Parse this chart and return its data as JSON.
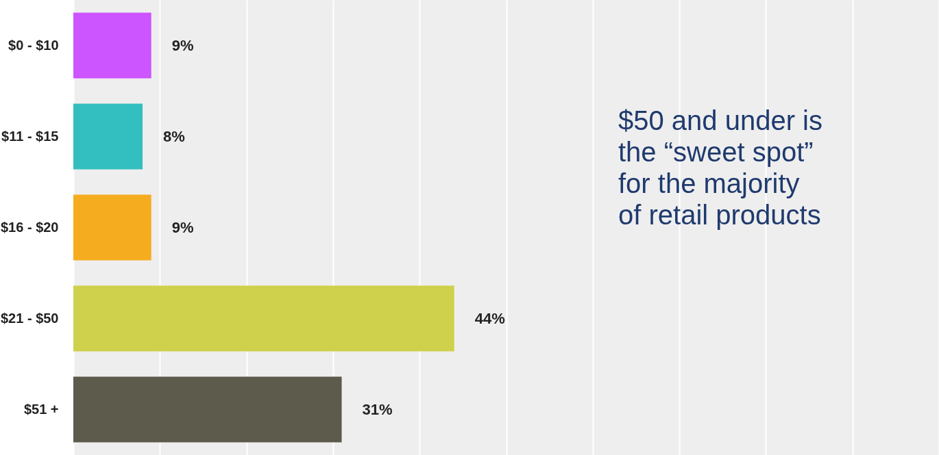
{
  "chart_data": {
    "type": "bar",
    "orientation": "horizontal",
    "categories": [
      "$0 - $10",
      "$11 - $15",
      "$16 - $20",
      "$21 - $50",
      "$51 +"
    ],
    "values": [
      9,
      8,
      9,
      44,
      31
    ],
    "colors": [
      "#cc55ff",
      "#33bfbf",
      "#f5ac1f",
      "#cfd04b",
      "#5d5b4c"
    ],
    "value_labels": [
      "9%",
      "8%",
      "9%",
      "44%",
      "31%"
    ],
    "xlim": [
      0,
      100
    ],
    "xticks": [
      {
        "value": 0,
        "label": null
      },
      {
        "value": 10,
        "label": null
      },
      {
        "value": 20,
        "label": null
      },
      {
        "value": 30,
        "label": null
      },
      {
        "value": 40,
        "label": null
      },
      {
        "value": 50,
        "label": null
      },
      {
        "value": 60,
        "label": null
      },
      {
        "value": 70,
        "label": null
      },
      {
        "value": 80,
        "label": null
      },
      {
        "value": 90,
        "label": null
      },
      {
        "value": 100,
        "label": null
      }
    ],
    "grid": "x",
    "tick_labels": "y",
    "annotations": [
      "$50 and under is the “sweet spot” for the majority of retail products"
    ]
  }
}
